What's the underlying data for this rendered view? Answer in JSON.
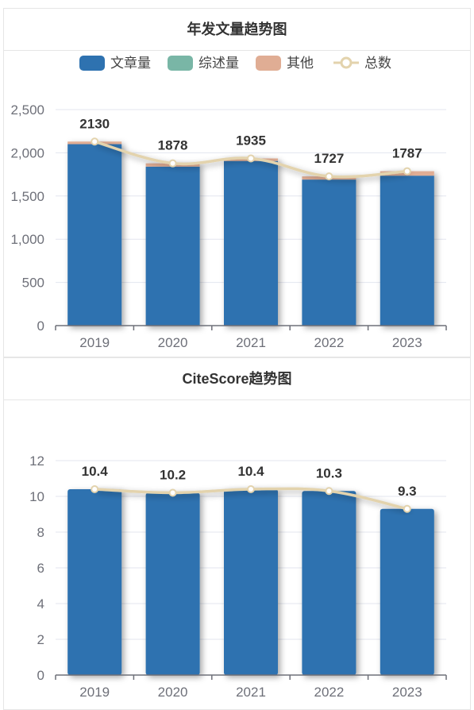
{
  "colors": {
    "articles": "#2e72b0",
    "reviews": "#79b6a6",
    "others": "#e0ad94",
    "total": "#e3d3ad",
    "grid": "#e3e6ef",
    "axis": "#6e7079"
  },
  "chart_data": [
    {
      "type": "bar",
      "title": "年发文量趋势图",
      "categories": [
        "2019",
        "2020",
        "2021",
        "2022",
        "2023"
      ],
      "ylim": [
        0,
        2500
      ],
      "yticks": [
        "0",
        "500",
        "1,000",
        "1,500",
        "2,000",
        "2,500"
      ],
      "ytick_values": [
        0,
        500,
        1000,
        1500,
        2000,
        2500
      ],
      "legend_position": "top-center",
      "series": [
        {
          "name": "文章量",
          "kind": "bar",
          "stack": "total",
          "values": [
            2100,
            1840,
            1905,
            1690,
            1735
          ]
        },
        {
          "name": "综述量",
          "kind": "bar",
          "stack": "total",
          "values": [
            0,
            0,
            0,
            0,
            0
          ]
        },
        {
          "name": "其他",
          "kind": "bar",
          "stack": "total",
          "values": [
            30,
            38,
            30,
            37,
            52
          ]
        },
        {
          "name": "总数",
          "kind": "line",
          "smooth": true,
          "values": [
            2130,
            1878,
            1935,
            1727,
            1787
          ]
        }
      ],
      "labels": [
        "2130",
        "1878",
        "1935",
        "1727",
        "1787"
      ]
    },
    {
      "type": "bar",
      "title": "CiteScore趋势图",
      "categories": [
        "2019",
        "2020",
        "2021",
        "2022",
        "2023"
      ],
      "ylim": [
        0,
        12
      ],
      "yticks": [
        "0",
        "2",
        "4",
        "6",
        "8",
        "10",
        "12"
      ],
      "ytick_values": [
        0,
        2,
        4,
        6,
        8,
        10,
        12
      ],
      "series": [
        {
          "name": "",
          "kind": "bar",
          "values": [
            10.4,
            10.2,
            10.4,
            10.3,
            9.3
          ]
        },
        {
          "name": "",
          "kind": "line",
          "smooth": true,
          "values": [
            10.4,
            10.2,
            10.4,
            10.3,
            9.3
          ]
        }
      ],
      "labels": [
        "10.4",
        "10.2",
        "10.4",
        "10.3",
        "9.3"
      ]
    }
  ]
}
